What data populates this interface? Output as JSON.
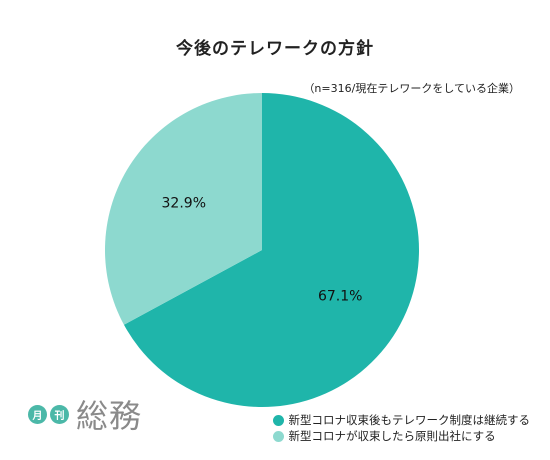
{
  "colors": {
    "series_primary": "#1fb5aa",
    "series_secondary": "#8dd9cf",
    "logo_badge": "#4bb8a8"
  },
  "logo": {
    "badge1": "月",
    "badge2": "刊",
    "word": "総務"
  },
  "chart_data": {
    "type": "pie",
    "title": "今後のテレワークの方針",
    "subtitle": "（n=316/現在テレワークをしている企業）",
    "slices": [
      {
        "name": "新型コロナ収束後もテレワーク制度は継続する",
        "value": 67.1,
        "label": "67.1%",
        "color": "#1fb5aa"
      },
      {
        "name": "新型コロナが収束したら原則出社にする",
        "value": 32.9,
        "label": "32.9%",
        "color": "#8dd9cf"
      }
    ],
    "legend_position": "bottom-right"
  }
}
